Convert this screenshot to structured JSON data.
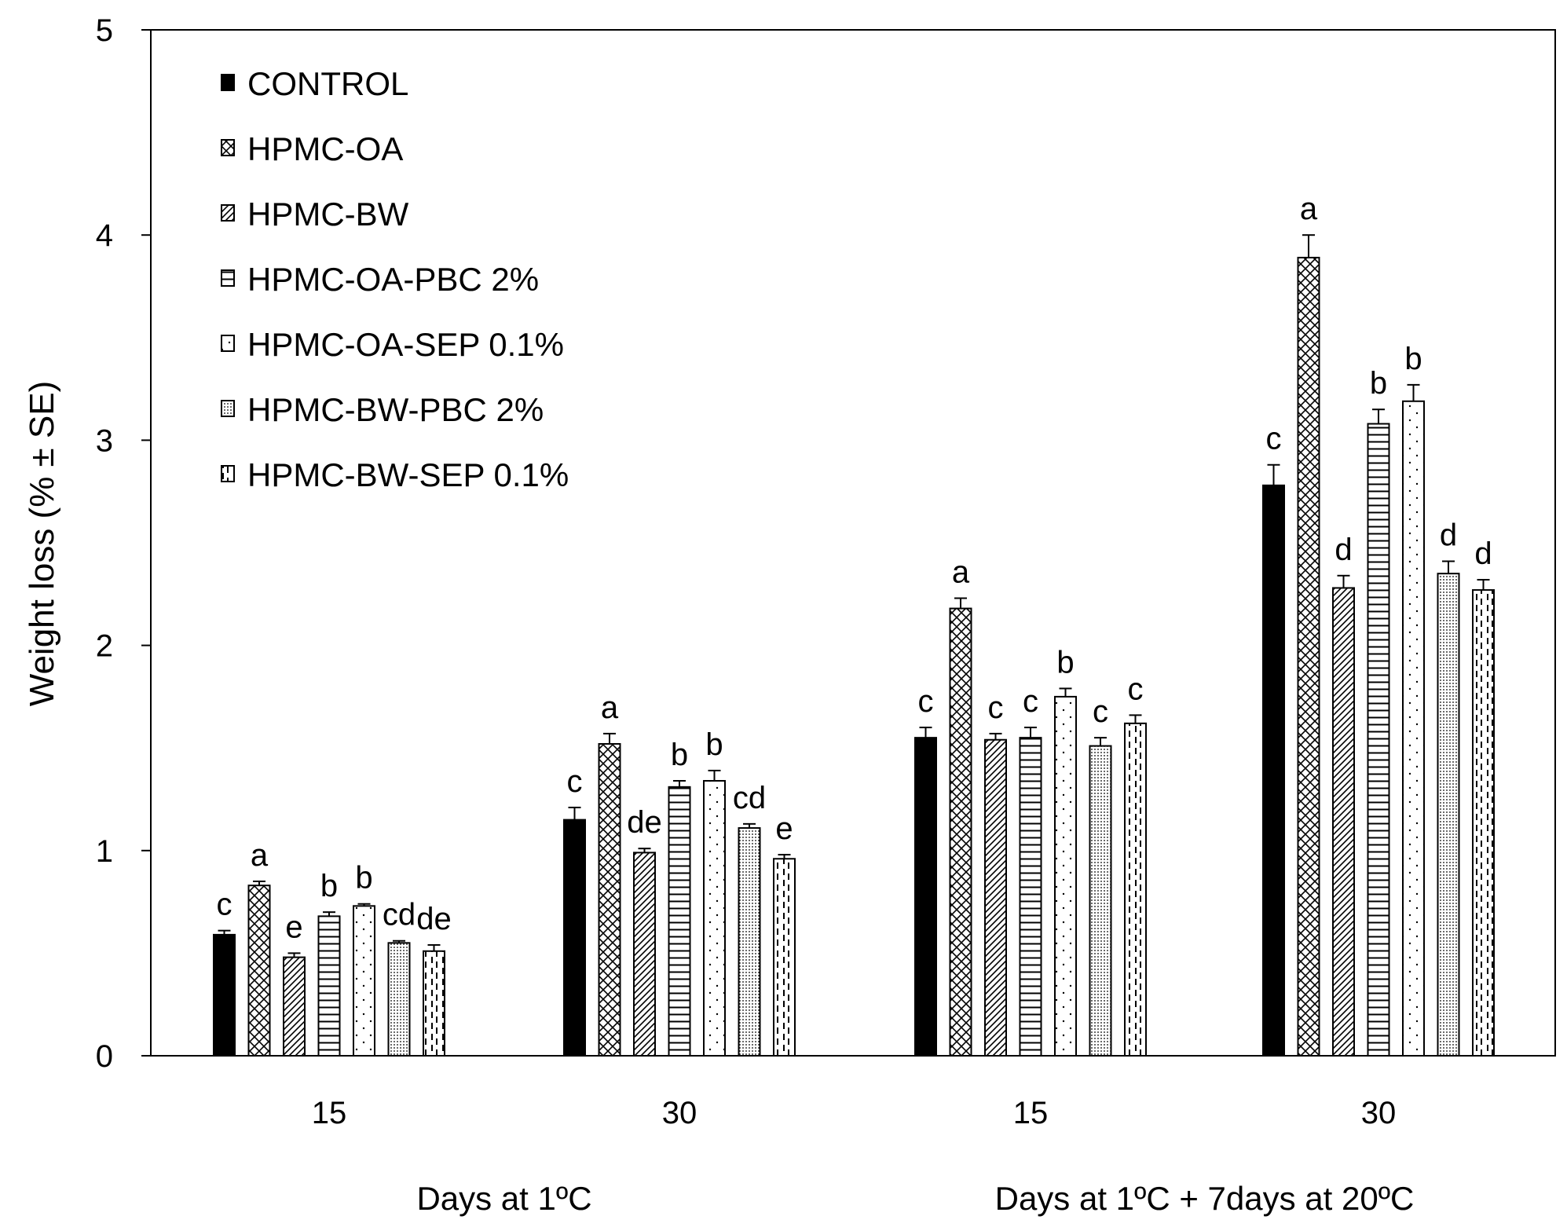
{
  "chart_data": {
    "type": "bar",
    "ylabel": "Weight loss (% ± SE)",
    "ylim": [
      0,
      5
    ],
    "yticks": [
      "0",
      "1",
      "2",
      "3",
      "4",
      "5"
    ],
    "categories": [
      "15",
      "30",
      "15",
      "30"
    ],
    "category_groups": [
      {
        "label": "Days at 1ºC",
        "categories": [
          0,
          1
        ]
      },
      {
        "label": "Days at 1ºC + 7days at 20ºC",
        "categories": [
          2,
          3
        ]
      }
    ],
    "legend_position": "top-left",
    "grid": false,
    "series": [
      {
        "name": "CONTROL",
        "pattern": "solid",
        "values": [
          0.59,
          1.15,
          1.55,
          2.78
        ],
        "errors": [
          0.02,
          0.06,
          0.05,
          0.1
        ],
        "labels": [
          "c",
          "c",
          "c",
          "c"
        ]
      },
      {
        "name": "HPMC-OA",
        "pattern": "crosshatch",
        "values": [
          0.83,
          1.52,
          2.18,
          3.89
        ],
        "errors": [
          0.02,
          0.05,
          0.05,
          0.11
        ],
        "labels": [
          "a",
          "a",
          "a",
          "a"
        ]
      },
      {
        "name": "HPMC-BW",
        "pattern": "diagonal",
        "values": [
          0.48,
          0.99,
          1.54,
          2.28
        ],
        "errors": [
          0.02,
          0.02,
          0.03,
          0.06
        ],
        "labels": [
          "e",
          "de",
          "c",
          "d"
        ]
      },
      {
        "name": "HPMC-OA-PBC 2%",
        "pattern": "horizontal",
        "values": [
          0.68,
          1.31,
          1.55,
          3.08
        ],
        "errors": [
          0.02,
          0.03,
          0.05,
          0.07
        ],
        "labels": [
          "b",
          "b",
          "c",
          "b"
        ]
      },
      {
        "name": "HPMC-OA-SEP 0.1%",
        "pattern": "sparse-dots",
        "values": [
          0.73,
          1.34,
          1.75,
          3.19
        ],
        "errors": [
          0.01,
          0.05,
          0.04,
          0.08
        ],
        "labels": [
          "b",
          "b",
          "b",
          "b"
        ]
      },
      {
        "name": "HPMC-BW-PBC 2%",
        "pattern": "dotted-grid",
        "values": [
          0.55,
          1.11,
          1.51,
          2.35
        ],
        "errors": [
          0.01,
          0.02,
          0.04,
          0.06
        ],
        "labels": [
          "cd",
          "cd",
          "c",
          "d"
        ]
      },
      {
        "name": "HPMC-BW-SEP 0.1%",
        "pattern": "dashed-vertical",
        "values": [
          0.51,
          0.96,
          1.62,
          2.27
        ],
        "errors": [
          0.03,
          0.02,
          0.04,
          0.05
        ],
        "labels": [
          "de",
          "e",
          "c",
          "d"
        ]
      }
    ]
  }
}
